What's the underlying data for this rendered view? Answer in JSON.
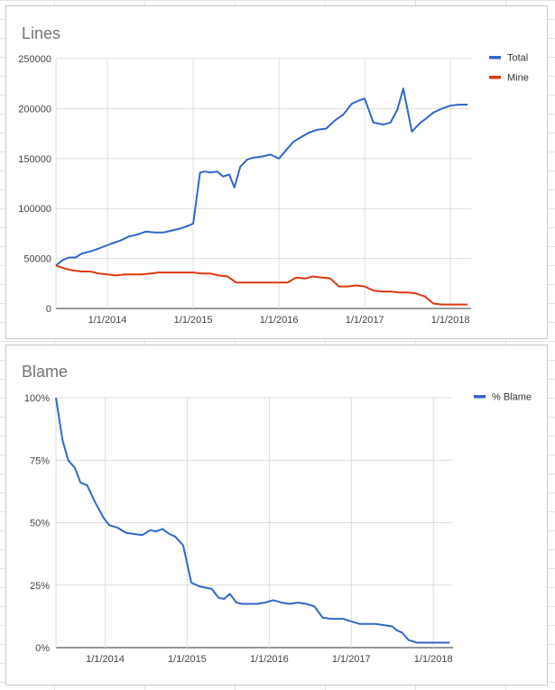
{
  "chart_data": [
    {
      "type": "line",
      "title": "Lines",
      "xlabel": "",
      "ylabel": "",
      "ylim": [
        0,
        250000
      ],
      "yticks": [
        "250000",
        "200000",
        "150000",
        "100000",
        "50000",
        "0"
      ],
      "xticks": [
        "1/1/2014",
        "1/1/2015",
        "1/1/2016",
        "1/1/2017",
        "1/1/2018"
      ],
      "legend_position": "right",
      "grid": true,
      "series": [
        {
          "name": "Total",
          "color": "#3366cc",
          "x": [
            2013.4,
            2013.47,
            2013.55,
            2013.63,
            2013.7,
            2013.8,
            2013.9,
            2014.05,
            2014.15,
            2014.25,
            2014.35,
            2014.45,
            2014.55,
            2014.65,
            2014.75,
            2014.85,
            2014.95,
            2015.0,
            2015.08,
            2015.14,
            2015.2,
            2015.28,
            2015.35,
            2015.42,
            2015.48,
            2015.55,
            2015.63,
            2015.7,
            2015.8,
            2015.9,
            2016.0,
            2016.1,
            2016.17,
            2016.25,
            2016.35,
            2016.45,
            2016.55,
            2016.65,
            2016.75,
            2016.85,
            2016.93,
            2017.0,
            2017.1,
            2017.22,
            2017.3,
            2017.38,
            2017.45,
            2017.55,
            2017.65,
            2017.73,
            2017.8,
            2017.9,
            2018.0,
            2018.1,
            2018.2
          ],
          "values": [
            43000,
            48000,
            51000,
            51000,
            55000,
            57000,
            60000,
            65000,
            68000,
            72000,
            74000,
            77000,
            76000,
            76000,
            78000,
            80000,
            83000,
            85000,
            136000,
            137000,
            136000,
            137000,
            132000,
            134000,
            121000,
            142000,
            149000,
            151000,
            152000,
            154000,
            150000,
            160000,
            167000,
            171000,
            176000,
            179000,
            180000,
            188000,
            194000,
            205000,
            208000,
            210000,
            186000,
            184000,
            186000,
            199000,
            220000,
            177000,
            186000,
            191000,
            196000,
            200000,
            203000,
            204000,
            204000
          ]
        },
        {
          "name": "Mine",
          "color": "#dc3912",
          "x": [
            2013.4,
            2013.5,
            2013.6,
            2013.7,
            2013.8,
            2013.9,
            2014.0,
            2014.1,
            2014.2,
            2014.3,
            2014.4,
            2014.5,
            2014.6,
            2014.7,
            2014.8,
            2014.9,
            2015.0,
            2015.1,
            2015.2,
            2015.3,
            2015.4,
            2015.5,
            2015.6,
            2015.7,
            2015.8,
            2015.9,
            2016.0,
            2016.1,
            2016.2,
            2016.3,
            2016.4,
            2016.5,
            2016.6,
            2016.7,
            2016.8,
            2016.9,
            2017.0,
            2017.1,
            2017.2,
            2017.3,
            2017.4,
            2017.5,
            2017.6,
            2017.7,
            2017.8,
            2017.9,
            2018.0,
            2018.1,
            2018.2
          ],
          "values": [
            43000,
            40000,
            38000,
            37000,
            37000,
            35000,
            34000,
            33000,
            34000,
            34000,
            34000,
            35000,
            36000,
            36000,
            36000,
            36000,
            36000,
            35000,
            35000,
            33000,
            32000,
            26000,
            26000,
            26000,
            26000,
            26000,
            26000,
            26000,
            31000,
            30000,
            32000,
            31000,
            30000,
            22000,
            22000,
            23000,
            22000,
            18000,
            17000,
            17000,
            16000,
            16000,
            15000,
            12000,
            5000,
            4000,
            4000,
            4000,
            4000
          ]
        }
      ]
    },
    {
      "type": "line",
      "title": "Blame",
      "xlabel": "",
      "ylabel": "",
      "ylim": [
        0,
        100
      ],
      "yticks": [
        "100%",
        "75%",
        "50%",
        "25%",
        "0%"
      ],
      "xticks": [
        "1/1/2014",
        "1/1/2015",
        "1/1/2016",
        "1/1/2017",
        "1/1/2018"
      ],
      "legend_position": "right",
      "grid": true,
      "series": [
        {
          "name": "% Blame",
          "color": "#3366cc",
          "x": [
            2013.4,
            2013.48,
            2013.55,
            2013.63,
            2013.7,
            2013.78,
            2013.88,
            2013.98,
            2014.05,
            2014.15,
            2014.25,
            2014.35,
            2014.45,
            2014.55,
            2014.62,
            2014.7,
            2014.78,
            2014.85,
            2014.95,
            2015.05,
            2015.15,
            2015.22,
            2015.3,
            2015.38,
            2015.45,
            2015.52,
            2015.6,
            2015.67,
            2015.75,
            2015.85,
            2015.95,
            2016.05,
            2016.15,
            2016.25,
            2016.35,
            2016.45,
            2016.55,
            2016.65,
            2016.75,
            2016.8,
            2016.9,
            2017.0,
            2017.1,
            2017.2,
            2017.3,
            2017.4,
            2017.5,
            2017.55,
            2017.62,
            2017.7,
            2017.8,
            2017.9,
            2018.0,
            2018.1,
            2018.2
          ],
          "values": [
            100,
            83,
            75,
            72,
            66,
            65,
            58,
            52,
            49,
            48,
            46,
            45.5,
            45,
            47,
            46.5,
            47.5,
            45.5,
            44.5,
            41,
            26,
            24.5,
            24,
            23.5,
            20,
            19.5,
            21.5,
            18,
            17.5,
            17.5,
            17.5,
            18,
            19,
            18,
            17.5,
            18,
            17.5,
            16.5,
            12,
            11.5,
            11.5,
            11.5,
            10.5,
            9.5,
            9.5,
            9.5,
            9,
            8.5,
            7,
            6,
            3,
            2,
            2,
            2,
            2,
            2
          ]
        }
      ]
    }
  ]
}
